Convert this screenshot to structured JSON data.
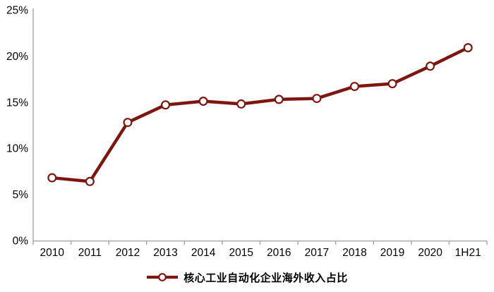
{
  "chart_data": {
    "type": "line",
    "title": "",
    "xlabel": "",
    "ylabel": "",
    "categories": [
      "2010",
      "2011",
      "2012",
      "2013",
      "2014",
      "2015",
      "2016",
      "2017",
      "2018",
      "2019",
      "2020",
      "1H21"
    ],
    "series": [
      {
        "name": "核心工业自动化企业海外收入占比",
        "values": [
          6.8,
          6.4,
          12.8,
          14.7,
          15.1,
          14.8,
          15.3,
          15.4,
          16.7,
          17.0,
          18.9,
          20.9
        ]
      }
    ],
    "ylim": [
      0,
      25
    ],
    "ytick_step": 5,
    "ytick_labels": [
      "0%",
      "5%",
      "10%",
      "15%",
      "20%",
      "25%"
    ],
    "grid": false,
    "legend_position": "bottom",
    "marker": "open-circle",
    "colors": {
      "line": "#7E160F",
      "marker_fill": "#FFFFFF",
      "axis": "#A6A6A6",
      "text": "#000000"
    }
  },
  "legend": {
    "label": "核心工业自动化企业海外收入占比"
  }
}
